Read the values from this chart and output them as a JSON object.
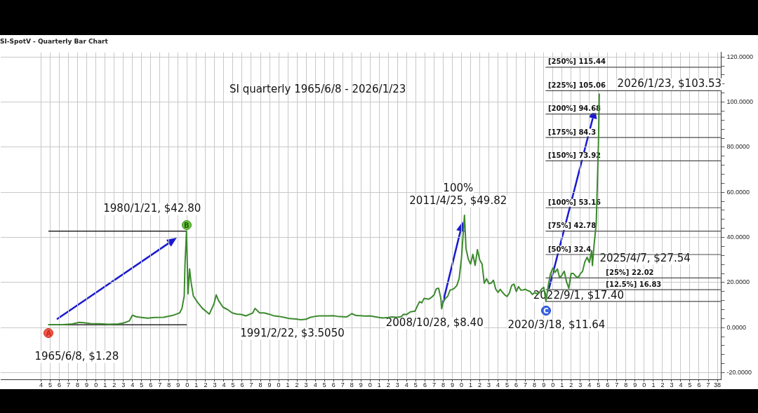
{
  "chart_data": {
    "type": "line",
    "title": "SI-SpotV - Quarterly Bar Chart",
    "subtitle": "SI quarterly 1965/6/8 - 2026/1/23",
    "xlim": [
      "1959-08",
      "2038-06"
    ],
    "ylim": [
      -23,
      122
    ],
    "xticks": [
      {
        "value": "1964",
        "label": "4"
      },
      {
        "value": "1965",
        "label": "5"
      },
      {
        "value": "1966",
        "label": "6"
      },
      {
        "value": "1967",
        "label": "7"
      },
      {
        "value": "1968",
        "label": "8"
      },
      {
        "value": "1969",
        "label": "9"
      },
      {
        "value": "1970",
        "label": "0"
      },
      {
        "value": "1971",
        "label": "1"
      },
      {
        "value": "1972",
        "label": "2"
      },
      {
        "value": "1973",
        "label": "3"
      },
      {
        "value": "1974",
        "label": "4"
      },
      {
        "value": "1975",
        "label": "5"
      },
      {
        "value": "1976",
        "label": "6"
      },
      {
        "value": "1977",
        "label": "7"
      },
      {
        "value": "1978",
        "label": "8"
      },
      {
        "value": "1979",
        "label": "9"
      },
      {
        "value": "1980",
        "label": "0"
      },
      {
        "value": "1981",
        "label": "1"
      },
      {
        "value": "1982",
        "label": "2"
      },
      {
        "value": "1983",
        "label": "3"
      },
      {
        "value": "1984",
        "label": "4"
      },
      {
        "value": "1985",
        "label": "5"
      },
      {
        "value": "1986",
        "label": "6"
      },
      {
        "value": "1987",
        "label": "7"
      },
      {
        "value": "1988",
        "label": "8"
      },
      {
        "value": "1989",
        "label": "9"
      },
      {
        "value": "1990",
        "label": "0"
      },
      {
        "value": "1991",
        "label": "1"
      },
      {
        "value": "1992",
        "label": "2"
      },
      {
        "value": "1993",
        "label": "3"
      },
      {
        "value": "1994",
        "label": "4"
      },
      {
        "value": "1995",
        "label": "5"
      },
      {
        "value": "1996",
        "label": "6"
      },
      {
        "value": "1997",
        "label": "7"
      },
      {
        "value": "1998",
        "label": "8"
      },
      {
        "value": "1999",
        "label": "9"
      },
      {
        "value": "2000",
        "label": "0"
      },
      {
        "value": "2001",
        "label": "1"
      },
      {
        "value": "2002",
        "label": "2"
      },
      {
        "value": "2003",
        "label": "3"
      },
      {
        "value": "2004",
        "label": "4"
      },
      {
        "value": "2005",
        "label": "5"
      },
      {
        "value": "2006",
        "label": "6"
      },
      {
        "value": "2007",
        "label": "7"
      },
      {
        "value": "2008",
        "label": "8"
      },
      {
        "value": "2009",
        "label": "9"
      },
      {
        "value": "2010",
        "label": "0"
      },
      {
        "value": "2011",
        "label": "1"
      },
      {
        "value": "2012",
        "label": "2"
      },
      {
        "value": "2013",
        "label": "3"
      },
      {
        "value": "2014",
        "label": "4"
      },
      {
        "value": "2015",
        "label": "5"
      },
      {
        "value": "2016",
        "label": "6"
      },
      {
        "value": "2017",
        "label": "7"
      },
      {
        "value": "2018",
        "label": "8"
      },
      {
        "value": "2019",
        "label": "9"
      },
      {
        "value": "2020",
        "label": "0"
      },
      {
        "value": "2021",
        "label": "1"
      },
      {
        "value": "2022",
        "label": "2"
      },
      {
        "value": "2023",
        "label": "3"
      },
      {
        "value": "2024",
        "label": "4"
      },
      {
        "value": "2025",
        "label": "5"
      },
      {
        "value": "2026",
        "label": "6"
      },
      {
        "value": "2027",
        "label": "7"
      },
      {
        "value": "2028",
        "label": "8"
      },
      {
        "value": "2029",
        "label": "9"
      },
      {
        "value": "2030",
        "label": "0"
      },
      {
        "value": "2031",
        "label": "1"
      },
      {
        "value": "2032",
        "label": "2"
      },
      {
        "value": "2033",
        "label": "3"
      },
      {
        "value": "2034",
        "label": "4"
      },
      {
        "value": "2035",
        "label": "5"
      },
      {
        "value": "2036",
        "label": "6"
      },
      {
        "value": "2037",
        "label": "7"
      },
      {
        "value": "2038",
        "label": "38"
      }
    ],
    "yticks": [
      {
        "value": -20,
        "label": "-20.0000"
      },
      {
        "value": -16,
        "label": null
      },
      {
        "value": -12,
        "label": null
      },
      {
        "value": -8,
        "label": null
      },
      {
        "value": -4,
        "label": null
      },
      {
        "value": 0,
        "label": "0.0000"
      },
      {
        "value": 4,
        "label": null
      },
      {
        "value": 8,
        "label": null
      },
      {
        "value": 12,
        "label": null
      },
      {
        "value": 16,
        "label": null
      },
      {
        "value": 20,
        "label": "20.0000"
      },
      {
        "value": 24,
        "label": null
      },
      {
        "value": 28,
        "label": null
      },
      {
        "value": 32,
        "label": null
      },
      {
        "value": 36,
        "label": null
      },
      {
        "value": 40,
        "label": "40.0000"
      },
      {
        "value": 44,
        "label": null
      },
      {
        "value": 48,
        "label": null
      },
      {
        "value": 52,
        "label": null
      },
      {
        "value": 56,
        "label": null
      },
      {
        "value": 60,
        "label": "60.0000"
      },
      {
        "value": 64,
        "label": null
      },
      {
        "value": 68,
        "label": null
      },
      {
        "value": 72,
        "label": null
      },
      {
        "value": 76,
        "label": null
      },
      {
        "value": 80,
        "label": "80.0000"
      },
      {
        "value": 84,
        "label": null
      },
      {
        "value": 88,
        "label": null
      },
      {
        "value": 92,
        "label": null
      },
      {
        "value": 96,
        "label": null
      },
      {
        "value": 100,
        "label": "100.0000"
      },
      {
        "value": 104,
        "label": null
      },
      {
        "value": 108,
        "label": null
      },
      {
        "value": 112,
        "label": null
      },
      {
        "value": 116,
        "label": null
      },
      {
        "value": 120,
        "label": "120.0000"
      }
    ],
    "grid": true,
    "legend": false,
    "marker": "none",
    "line_style": "solid",
    "series": [
      {
        "type": "line",
        "color": "#3c8a2e",
        "x": [
          "1964-11",
          "1965-06",
          "1966-06",
          "1967-06",
          "1968-03",
          "1968-09",
          "1969-06",
          "1970-06",
          "1971-06",
          "1972-06",
          "1973-01",
          "1973-09",
          "1974-01",
          "1974-06",
          "1975-01",
          "1975-09",
          "1976-06",
          "1977-06",
          "1978-06",
          "1979-03",
          "1979-06",
          "1979-09",
          "1979-10",
          "1979-12",
          "1980-02",
          "1980-04",
          "1980-06",
          "1980-09",
          "1981-03",
          "1981-09",
          "1982-06",
          "1982-12",
          "1983-03",
          "1983-06",
          "1983-12",
          "1984-06",
          "1984-12",
          "1985-06",
          "1985-12",
          "1986-06",
          "1987-03",
          "1987-06",
          "1987-12",
          "1988-06",
          "1988-12",
          "1989-06",
          "1990-01",
          "1990-09",
          "1991-03",
          "1991-12",
          "1992-06",
          "1993-01",
          "1993-06",
          "1994-01",
          "1994-06",
          "1995-06",
          "1996-01",
          "1996-06",
          "1997-06",
          "1997-10",
          "1998-01",
          "1998-06",
          "1999-01",
          "1999-06",
          "2000-01",
          "2000-06",
          "2001-01",
          "2001-06",
          "2002-01",
          "2002-06",
          "2003-01",
          "2003-06",
          "2003-09",
          "2004-01",
          "2004-06",
          "2004-12",
          "2005-03",
          "2005-06",
          "2005-09",
          "2005-12",
          "2006-06",
          "2006-10",
          "2007-01",
          "2007-04",
          "2007-07",
          "2007-10",
          "2007-11",
          "2008-01",
          "2008-04",
          "2008-07",
          "2008-10",
          "2009-01",
          "2009-04",
          "2009-07",
          "2009-10",
          "2010-01",
          "2010-05",
          "2010-07",
          "2010-10",
          "2011-01",
          "2011-04",
          "2011-07",
          "2011-10",
          "2012-01",
          "2012-04",
          "2012-07",
          "2012-10",
          "2013-01",
          "2013-04",
          "2013-07",
          "2013-10",
          "2014-01",
          "2014-04",
          "2014-07",
          "2014-10",
          "2015-01",
          "2015-04",
          "2015-07",
          "2015-10",
          "2016-01",
          "2016-04",
          "2016-07",
          "2016-10",
          "2017-01",
          "2017-04",
          "2017-07",
          "2017-10",
          "2018-01",
          "2018-04",
          "2018-07",
          "2018-10",
          "2019-01",
          "2019-04",
          "2019-07",
          "2019-10",
          "2020-01",
          "2020-04",
          "2020-07",
          "2020-10",
          "2021-01",
          "2021-04",
          "2021-07",
          "2021-10",
          "2022-01",
          "2022-04",
          "2022-07",
          "2022-10",
          "2023-01",
          "2023-04",
          "2023-07",
          "2023-10",
          "2024-01",
          "2024-04",
          "2024-05",
          "2024-07",
          "2024-10",
          "2025-01",
          "2025-02"
        ],
        "values": [
          1.28,
          1.29,
          1.29,
          1.6,
          2.3,
          2.2,
          1.8,
          1.7,
          1.5,
          1.6,
          2.0,
          3.0,
          5.5,
          4.8,
          4.5,
          4.2,
          4.5,
          4.6,
          5.4,
          6.5,
          8.5,
          14,
          28,
          42.8,
          15,
          26,
          20,
          14,
          11,
          8.5,
          6,
          10.5,
          14.5,
          12,
          9,
          8,
          6.5,
          6,
          5.8,
          5.2,
          6.5,
          8.5,
          6.5,
          6.5,
          6,
          5.3,
          5.0,
          4.5,
          4.0,
          3.8,
          3.505,
          3.7,
          4.5,
          5.0,
          5.2,
          5.2,
          5.3,
          5.0,
          4.7,
          5.5,
          6.2,
          5.4,
          5.3,
          5.1,
          5.2,
          4.9,
          4.5,
          4.3,
          4.5,
          4.7,
          4.6,
          4.9,
          5.9,
          5.8,
          7.0,
          7.3,
          9.5,
          11.5,
          11,
          13,
          12.6,
          13.5,
          14.5,
          17.2,
          17.5,
          12.9,
          8.4,
          11.3,
          13,
          13.9,
          16.6,
          16.9,
          17.5,
          18.7,
          21.8,
          30.6,
          49.82,
          35,
          30.4,
          28.2,
          32.5,
          27.6,
          34.6,
          30,
          28.3,
          19.7,
          21.7,
          19.5,
          19.7,
          21,
          17.1,
          15.6,
          17,
          15.6,
          14.5,
          13.8,
          15.4,
          18.7,
          19.3,
          16,
          18.2,
          16.6,
          16.7,
          17,
          16.4,
          16.1,
          14.7,
          15.5,
          15.1,
          15.3,
          17,
          17.9,
          11.64,
          18.6,
          24,
          26.4,
          24.5,
          26,
          22,
          23.3,
          25,
          20.3,
          17.4,
          24,
          24,
          22.8,
          22.1,
          23.8,
          24.9,
          29.1,
          31.2,
          28.9,
          34.1,
          27.54,
          36,
          46.2,
          83,
          103.53
        ]
      },
      {
        "type": "line",
        "color": "#000000",
        "x": [
          "1964-11",
          "1979-12"
        ],
        "values": [
          42.8,
          42.8
        ]
      },
      {
        "type": "line",
        "color": "#000000",
        "x": [
          "1964-11",
          "1979-12"
        ],
        "values": [
          1.28,
          1.28
        ]
      },
      {
        "type": "line",
        "color": "#4d4d4d",
        "x": [
          "2019-04",
          "2038-05"
        ],
        "values": [
          115.44,
          115.44
        ]
      },
      {
        "type": "line",
        "color": "#4d4d4d",
        "x": [
          "2019-04",
          "2038-05"
        ],
        "values": [
          105.06,
          105.06
        ]
      },
      {
        "type": "line",
        "color": "#4d4d4d",
        "x": [
          "2019-04",
          "2038-05"
        ],
        "values": [
          94.68,
          94.68
        ]
      },
      {
        "type": "line",
        "color": "#4d4d4d",
        "x": [
          "2019-04",
          "2038-05"
        ],
        "values": [
          84.3,
          84.3
        ]
      },
      {
        "type": "line",
        "color": "#4d4d4d",
        "x": [
          "2019-04",
          "2038-05"
        ],
        "values": [
          73.92,
          73.92
        ]
      },
      {
        "type": "line",
        "color": "#4d4d4d",
        "x": [
          "2019-04",
          "2038-05"
        ],
        "values": [
          53.16,
          53.16
        ]
      },
      {
        "type": "line",
        "color": "#4d4d4d",
        "x": [
          "2019-04",
          "2038-05"
        ],
        "values": [
          42.78,
          42.78
        ]
      },
      {
        "type": "line",
        "color": "#4d4d4d",
        "x": [
          "2019-04",
          "2038-05"
        ],
        "values": [
          32.4,
          32.4
        ]
      },
      {
        "type": "line",
        "color": "#4d4d4d",
        "x": [
          "2019-04",
          "2038-05"
        ],
        "values": [
          22.02,
          22.02
        ]
      },
      {
        "type": "line",
        "color": "#4d4d4d",
        "x": [
          "2019-04",
          "2038-05"
        ],
        "values": [
          16.83,
          16.83
        ]
      },
      {
        "type": "line",
        "color": "#4d4d4d",
        "x": [
          "2019-04",
          "2038-05"
        ],
        "values": [
          11.64,
          11.64
        ]
      }
    ],
    "annotations": [
      {
        "text": "A",
        "x": "1964-11",
        "y": 1.28
      },
      {
        "text": "1965/6/8, $1.28",
        "x": "1964-11",
        "y": 1.28
      },
      {
        "text": "B",
        "x": "1979-12",
        "y": 42.8
      },
      {
        "text": "1980/1/21, $42.80",
        "x": "1979-12",
        "y": 42.8
      },
      {
        "text": "1991/2/22, $3.5050",
        "x": "1992-06",
        "y": 3.505
      },
      {
        "text": "2008/10/28, $8.40",
        "x": "2007-11",
        "y": 8.4
      },
      {
        "text": "100%",
        "x": "2010-05",
        "y": 49.82
      },
      {
        "text": "2011/4/25, $49.82",
        "x": "2010-05",
        "y": 49.82
      },
      {
        "text": "C",
        "x": "2019-04",
        "y": 11.64
      },
      {
        "text": "2020/3/18, $11.64",
        "x": "2019-04",
        "y": 11.64
      },
      {
        "text": "2022/9/1, $17.40",
        "x": "2021-10",
        "y": 17.4
      },
      {
        "text": "2025/4/7, $27.54",
        "x": "2024-05",
        "y": 27.54
      },
      {
        "text": "2026/1/23, $103.53",
        "x": "2025-02",
        "y": 103.53
      },
      {
        "text": "[250%] 115.44",
        "x": "2019-04",
        "y": 115.44
      },
      {
        "text": "[225%] 105.06",
        "x": "2019-04",
        "y": 105.06
      },
      {
        "text": "[200%] 94.68",
        "x": "2019-04",
        "y": 94.68
      },
      {
        "text": "[175%] 84.3",
        "x": "2019-04",
        "y": 84.3
      },
      {
        "text": "[150%] 73.92",
        "x": "2019-04",
        "y": 73.92
      },
      {
        "text": "[100%] 53.16",
        "x": "2019-04",
        "y": 53.16
      },
      {
        "text": "[75%] 42.78",
        "x": "2019-04",
        "y": 42.78
      },
      {
        "text": "[50%] 32.4",
        "x": "2019-04",
        "y": 32.4
      },
      {
        "text": "[25%] 22.02",
        "x": "2025-08",
        "y": 22.02
      },
      {
        "text": "[12.5%] 16.83",
        "x": "2025-08",
        "y": 16.83
      }
    ]
  }
}
